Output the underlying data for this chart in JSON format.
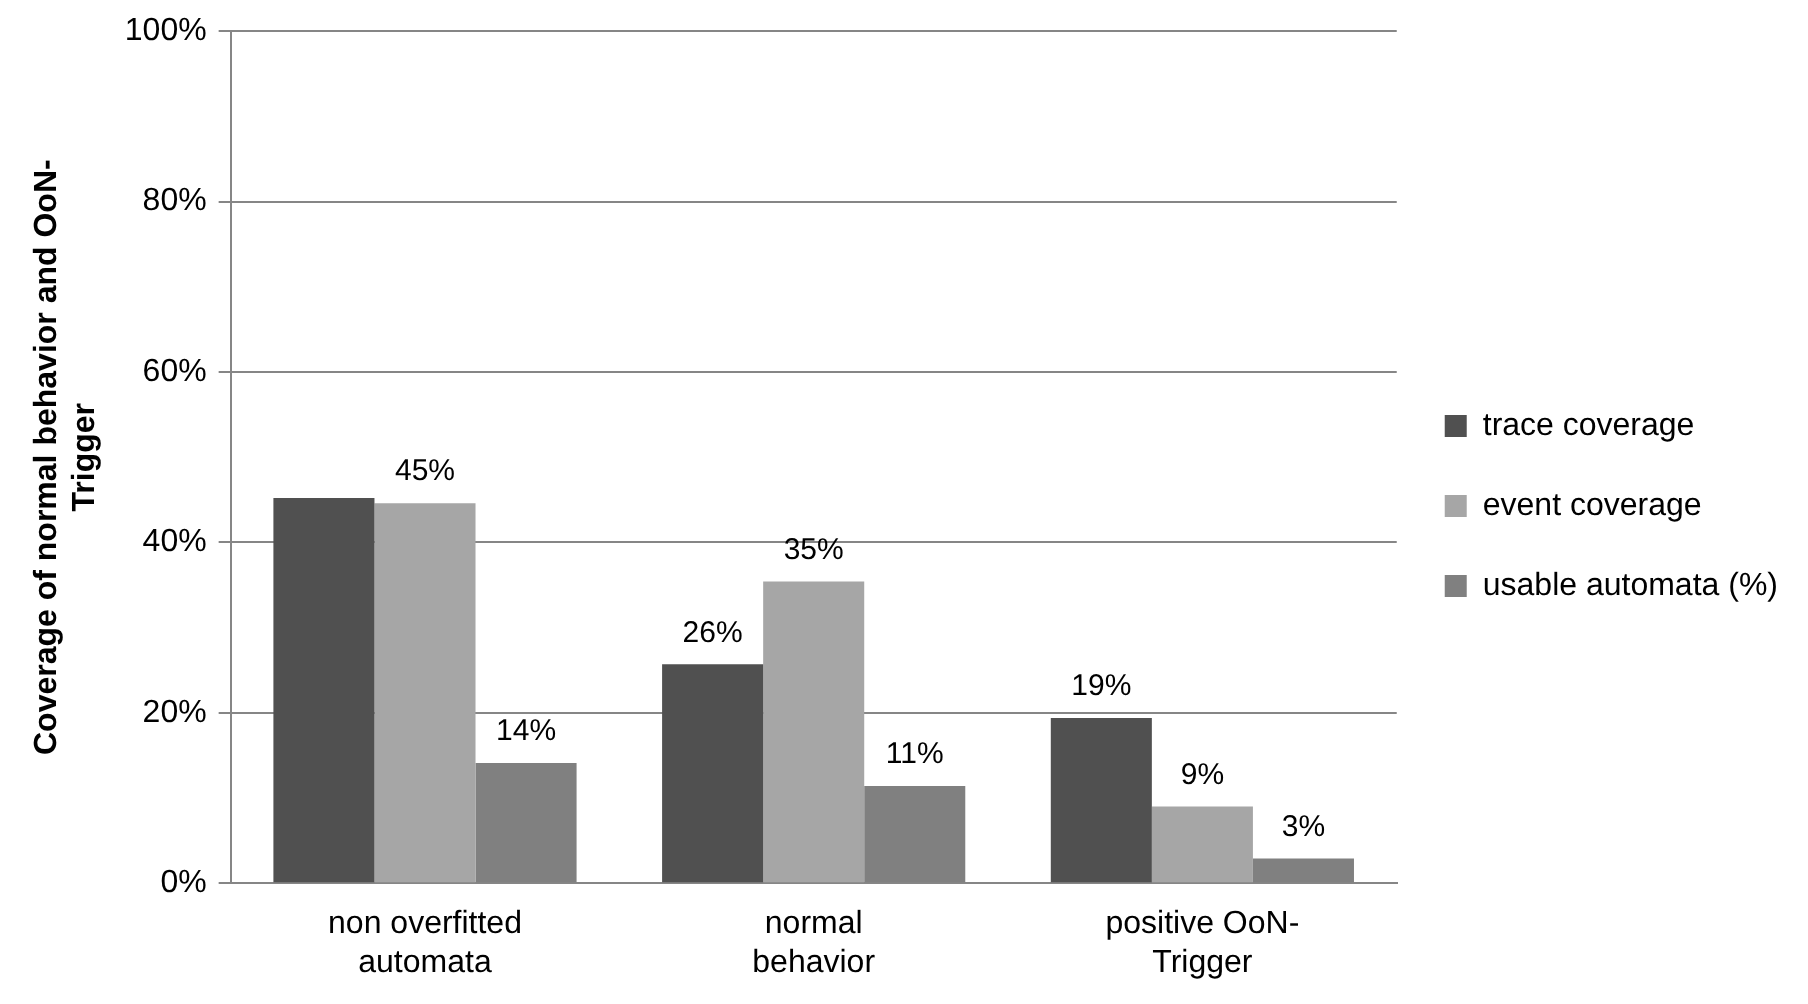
{
  "chart_data": {
    "type": "bar",
    "ylabel": "Coverage of normal behavior and OoN-Trigger",
    "categories": [
      "non overfitted automata",
      "normal behavior",
      "positive OoN-Trigger"
    ],
    "series": [
      {
        "name": "trace coverage",
        "color": "#505050",
        "values": [
          45.2,
          25.7,
          19.4
        ],
        "value_labels": [
          null,
          "26%",
          "19%"
        ]
      },
      {
        "name": "event coverage",
        "color": "#a6a6a6",
        "values": [
          44.6,
          35.4,
          9
        ],
        "value_labels": [
          "45%",
          "35%",
          "9%"
        ]
      },
      {
        "name": "usable automata (%)",
        "color": "#808080",
        "values": [
          14.1,
          11.4,
          2.9
        ],
        "value_labels": [
          "14%",
          "11%",
          "3%"
        ]
      }
    ],
    "ylim": [
      0,
      100
    ],
    "yticks": [
      {
        "value": 0,
        "label": "0%"
      },
      {
        "value": 20,
        "label": "20%"
      },
      {
        "value": 40,
        "label": "40%"
      },
      {
        "value": 60,
        "label": "60%"
      },
      {
        "value": 80,
        "label": "80%"
      },
      {
        "value": 100,
        "label": "100%"
      }
    ],
    "grid": "y",
    "legend": "right"
  }
}
